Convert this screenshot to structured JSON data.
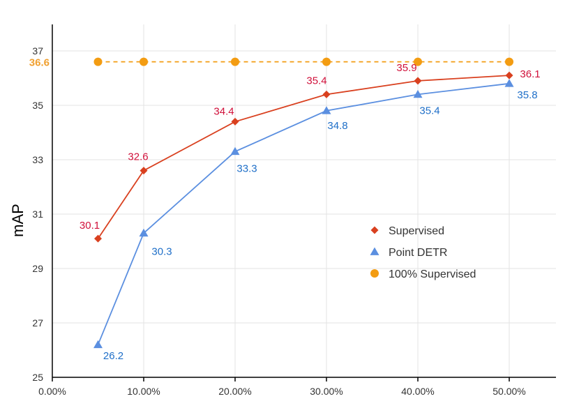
{
  "chart_data": {
    "type": "line",
    "title": "",
    "xlabel": "",
    "ylabel": "mAP",
    "x": [
      5,
      10,
      20,
      30,
      40,
      50
    ],
    "xlim": [
      0,
      55
    ],
    "ylim": [
      25,
      38
    ],
    "x_ticks": [
      0,
      10,
      20,
      30,
      40,
      50
    ],
    "x_tick_labels": [
      "0.00%",
      "10.00%",
      "20.00%",
      "30.00%",
      "40.00%",
      "50.00%"
    ],
    "y_ticks": [
      25,
      27,
      29,
      31,
      33,
      35,
      37
    ],
    "y_tick_labels": [
      "25",
      "27",
      "29",
      "31",
      "33",
      "35",
      "37"
    ],
    "grid": true,
    "legend_position": "right",
    "series": [
      {
        "name": "Supervised",
        "values": [
          30.1,
          32.6,
          34.4,
          35.4,
          35.9,
          36.1
        ],
        "labels": [
          "30.1",
          "32.6",
          "34.4",
          "35.4",
          "35.9",
          "36.1"
        ],
        "color": "#d9401f",
        "label_color": "#d0103a",
        "marker": "diamond",
        "line": "solid",
        "show_labels": true
      },
      {
        "name": "Point DETR",
        "values": [
          26.2,
          30.3,
          33.3,
          34.8,
          35.4,
          35.8
        ],
        "labels": [
          "26.2",
          "30.3",
          "33.3",
          "34.8",
          "35.4",
          "35.8"
        ],
        "color": "#5b8fe0",
        "label_color": "#1f6fc8",
        "marker": "triangle",
        "line": "solid",
        "show_labels": true
      },
      {
        "name": "100% Supervised",
        "values": [
          36.6,
          36.6,
          36.6,
          36.6,
          36.6,
          36.6
        ],
        "labels": [
          "36.6"
        ],
        "color": "#f39c12",
        "label_color": "#f0a030",
        "marker": "circle",
        "line": "dashed",
        "show_labels": false
      }
    ],
    "reference_label": "36.6"
  }
}
